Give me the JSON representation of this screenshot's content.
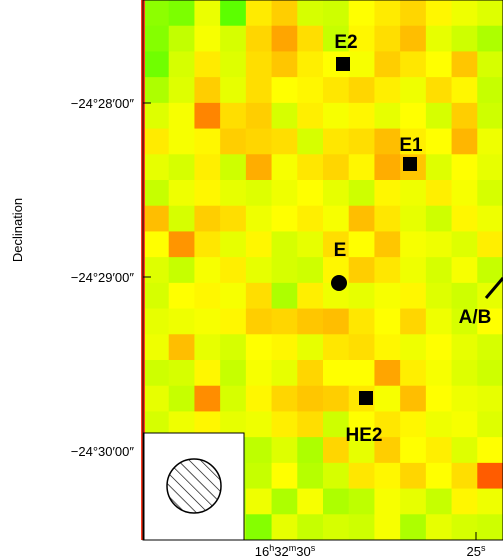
{
  "chart_data": {
    "type": "heatmap",
    "title": "",
    "xlabel": "",
    "ylabel": "Declination",
    "x_ticks": [
      {
        "label": "16h32m30s",
        "main": "16",
        "sup1": "h",
        "mid": "32",
        "sup2": "m",
        "last": "30",
        "sup3": "s"
      },
      {
        "label": "25s",
        "main": "25",
        "sup1": "s"
      }
    ],
    "y_ticks": [
      "−24°28′00″",
      "−24°29′00″",
      "−24°30′00″"
    ],
    "colormap": {
      "low": "#33ff00",
      "mid": "#ffff00",
      "high": "#ff3300"
    },
    "grid": {
      "rows": 21,
      "cols": 14
    },
    "sources": [
      {
        "name": "E2",
        "marker": "square"
      },
      {
        "name": "E1",
        "marker": "square"
      },
      {
        "name": "E",
        "marker": "circle"
      },
      {
        "name": "HE2",
        "marker": "square"
      },
      {
        "name": "A/B",
        "marker": "arrow"
      }
    ],
    "beam": {
      "shape": "circle",
      "hatch": true
    },
    "values": [
      [
        0.22,
        0.18,
        0.45,
        0.1,
        0.55,
        0.62,
        0.4,
        0.38,
        0.5,
        0.55,
        0.6,
        0.52,
        0.46,
        0.42
      ],
      [
        0.2,
        0.35,
        0.48,
        0.4,
        0.6,
        0.72,
        0.58,
        0.36,
        0.52,
        0.58,
        0.66,
        0.44,
        0.38,
        0.3
      ],
      [
        0.15,
        0.4,
        0.55,
        0.42,
        0.58,
        0.64,
        0.54,
        0.5,
        0.48,
        0.62,
        0.56,
        0.5,
        0.64,
        0.4
      ],
      [
        0.3,
        0.42,
        0.62,
        0.44,
        0.58,
        0.5,
        0.52,
        0.56,
        0.6,
        0.54,
        0.46,
        0.58,
        0.52,
        0.36
      ],
      [
        0.42,
        0.48,
        0.8,
        0.58,
        0.62,
        0.4,
        0.54,
        0.48,
        0.52,
        0.44,
        0.5,
        0.4,
        0.62,
        0.38
      ],
      [
        0.55,
        0.48,
        0.52,
        0.62,
        0.6,
        0.58,
        0.4,
        0.56,
        0.58,
        0.66,
        0.54,
        0.5,
        0.68,
        0.46
      ],
      [
        0.44,
        0.4,
        0.54,
        0.38,
        0.7,
        0.48,
        0.56,
        0.6,
        0.52,
        0.7,
        0.64,
        0.42,
        0.5,
        0.44
      ],
      [
        0.36,
        0.46,
        0.52,
        0.44,
        0.42,
        0.46,
        0.5,
        0.44,
        0.38,
        0.52,
        0.46,
        0.54,
        0.48,
        0.4
      ],
      [
        0.66,
        0.4,
        0.62,
        0.58,
        0.46,
        0.5,
        0.54,
        0.48,
        0.66,
        0.56,
        0.44,
        0.38,
        0.52,
        0.46
      ],
      [
        0.5,
        0.76,
        0.56,
        0.44,
        0.52,
        0.4,
        0.44,
        0.58,
        0.5,
        0.64,
        0.48,
        0.46,
        0.42,
        0.54
      ],
      [
        0.42,
        0.36,
        0.48,
        0.54,
        0.44,
        0.4,
        0.38,
        0.52,
        0.62,
        0.56,
        0.46,
        0.4,
        0.48,
        0.36
      ],
      [
        0.4,
        0.5,
        0.52,
        0.48,
        0.58,
        0.3,
        0.54,
        0.46,
        0.44,
        0.48,
        0.52,
        0.42,
        0.38,
        0.44
      ],
      [
        0.44,
        0.46,
        0.48,
        0.52,
        0.62,
        0.6,
        0.64,
        0.66,
        0.56,
        0.5,
        0.6,
        0.46,
        0.4,
        0.5
      ],
      [
        0.46,
        0.66,
        0.44,
        0.4,
        0.5,
        0.52,
        0.44,
        0.56,
        0.58,
        0.52,
        0.46,
        0.5,
        0.44,
        0.4
      ],
      [
        0.38,
        0.4,
        0.52,
        0.36,
        0.48,
        0.44,
        0.6,
        0.5,
        0.5,
        0.72,
        0.54,
        0.48,
        0.42,
        0.38
      ],
      [
        0.44,
        0.36,
        0.78,
        0.4,
        0.52,
        0.6,
        0.64,
        0.62,
        0.56,
        0.48,
        0.66,
        0.5,
        0.46,
        0.44
      ],
      [
        0.4,
        0.46,
        0.52,
        0.44,
        0.46,
        0.54,
        0.58,
        0.38,
        0.5,
        0.56,
        0.52,
        0.46,
        0.48,
        0.42
      ],
      [
        0.3,
        0.3,
        0.3,
        0.3,
        0.34,
        0.42,
        0.3,
        0.6,
        0.44,
        0.62,
        0.5,
        0.54,
        0.42,
        0.5
      ],
      [
        0.3,
        0.3,
        0.3,
        0.3,
        0.36,
        0.5,
        0.32,
        0.4,
        0.56,
        0.52,
        0.6,
        0.5,
        0.58,
        0.9
      ],
      [
        0.3,
        0.3,
        0.3,
        0.3,
        0.46,
        0.3,
        0.48,
        0.3,
        0.34,
        0.48,
        0.44,
        0.36,
        0.52,
        0.46
      ],
      [
        0.3,
        0.3,
        0.3,
        0.3,
        0.2,
        0.44,
        0.36,
        0.4,
        0.38,
        0.48,
        0.3,
        0.44,
        0.4,
        0.38
      ]
    ]
  }
}
